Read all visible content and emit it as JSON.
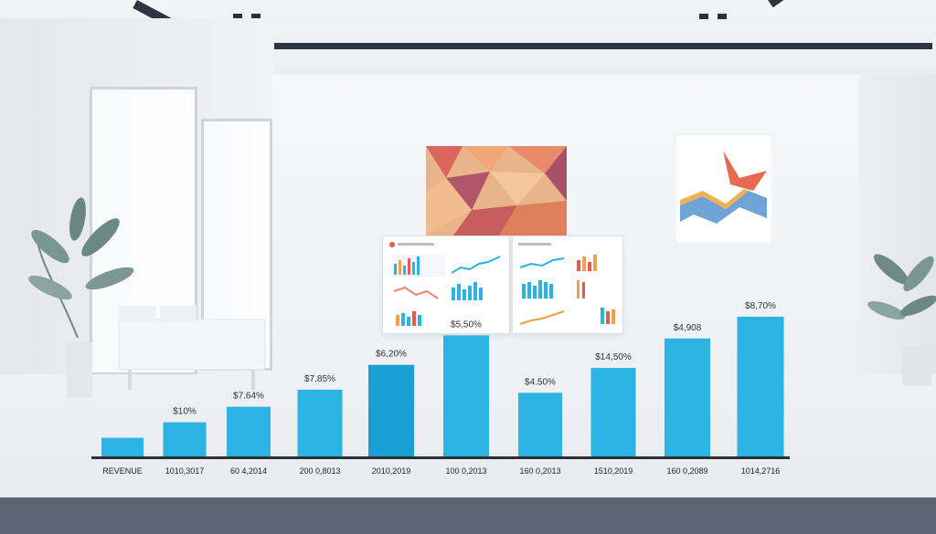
{
  "chart_data": {
    "type": "bar",
    "categories": [
      "REVENUE",
      "1010,3017",
      "60 4,2014",
      "200 0,8013",
      "2010,2019",
      "100 0,2013",
      "160 0,2013",
      "1510,2019",
      "160 0,2089",
      "1014,2716"
    ],
    "values": [
      12,
      22,
      32,
      43,
      59,
      78,
      41,
      57,
      76,
      90
    ],
    "data_labels": [
      "",
      "$10%",
      "$7.64%",
      "$7.85%",
      "$6,20%",
      "$5,50%",
      "$4.50%",
      "$14,50%",
      "$4,908",
      "$8,70%"
    ],
    "ylim": [
      0,
      100
    ],
    "highlight_index": 4,
    "colors": {
      "bar": "#2bb3e3",
      "bar_highlight": "#1a9fd3",
      "axis": "#2a2f3a"
    }
  }
}
